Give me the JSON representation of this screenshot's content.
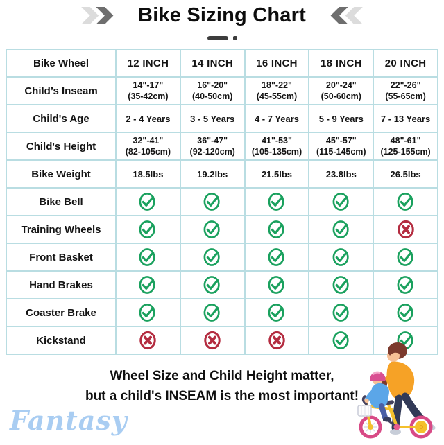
{
  "header": {
    "title": "Bike Sizing Chart"
  },
  "table": {
    "rows": [
      {
        "label": "Bike Wheel",
        "type": "header",
        "values": [
          "12 INCH",
          "14 INCH",
          "16 INCH",
          "18 INCH",
          "20 INCH"
        ]
      },
      {
        "label": "Child’s Inseam",
        "type": "text2",
        "values": [
          [
            "14\"-17\"",
            "(35-42cm)"
          ],
          [
            "16\"-20\"",
            "(40-50cm)"
          ],
          [
            "18\"-22\"",
            "(45-55cm)"
          ],
          [
            "20\"-24\"",
            "(50-60cm)"
          ],
          [
            "22\"-26\"",
            "(55-65cm)"
          ]
        ]
      },
      {
        "label": "Child's Age",
        "type": "text",
        "values": [
          "2 - 4 Years",
          "3 - 5 Years",
          "4 - 7 Years",
          "5 - 9 Years",
          "7 - 13 Years"
        ]
      },
      {
        "label": "Child's Height",
        "type": "text2",
        "values": [
          [
            "32\"-41\"",
            "(82-105cm)"
          ],
          [
            "36\"-47\"",
            "(92-120cm)"
          ],
          [
            "41\"-53\"",
            "(105-135cm)"
          ],
          [
            "45\"-57\"",
            "(115-145cm)"
          ],
          [
            "48\"-61\"",
            "(125-155cm)"
          ]
        ]
      },
      {
        "label": "Bike Weight",
        "type": "text",
        "values": [
          "18.5lbs",
          "19.2lbs",
          "21.5lbs",
          "23.8lbs",
          "26.5lbs"
        ]
      },
      {
        "label": "Bike Bell",
        "type": "icons",
        "values": [
          "check",
          "check",
          "check",
          "check",
          "check"
        ]
      },
      {
        "label": "Training Wheels",
        "type": "icons",
        "values": [
          "check",
          "check",
          "check",
          "check",
          "cross"
        ]
      },
      {
        "label": "Front Basket",
        "type": "icons",
        "values": [
          "check",
          "check",
          "check",
          "check",
          "check"
        ]
      },
      {
        "label": "Hand Brakes",
        "type": "icons",
        "values": [
          "check",
          "check",
          "check",
          "check",
          "check"
        ]
      },
      {
        "label": "Coaster Brake",
        "type": "icons",
        "values": [
          "check",
          "check",
          "check",
          "check",
          "check"
        ]
      },
      {
        "label": "Kickstand",
        "type": "icons",
        "values": [
          "cross",
          "cross",
          "cross",
          "check",
          "check"
        ]
      }
    ]
  },
  "footer": {
    "line1": "Wheel Size and Child Height matter,",
    "line2": "but a child's INSEAM is the most important!",
    "watermark": "Fantasy"
  },
  "colors": {
    "check_green": "#1aa15e",
    "cross_red": "#b42c40",
    "table_border": "#b9dde2",
    "watermark_blue": "#a9cdf2",
    "chevron_dark": "#6e6e6e",
    "chevron_light": "#dcdcdc"
  },
  "chart_data": {
    "type": "table",
    "title": "Bike Sizing Chart",
    "columns": [
      "Bike Wheel",
      "12 INCH",
      "14 INCH",
      "16 INCH",
      "18 INCH",
      "20 INCH"
    ],
    "rows": [
      [
        "Child’s Inseam",
        "14\"-17\" (35-42cm)",
        "16\"-20\" (40-50cm)",
        "18\"-22\" (45-55cm)",
        "20\"-24\" (50-60cm)",
        "22\"-26\" (55-65cm)"
      ],
      [
        "Child's Age",
        "2 - 4 Years",
        "3 - 5 Years",
        "4 - 7 Years",
        "5 - 9 Years",
        "7 - 13 Years"
      ],
      [
        "Child's Height",
        "32\"-41\" (82-105cm)",
        "36\"-47\" (92-120cm)",
        "41\"-53\" (105-135cm)",
        "45\"-57\" (115-145cm)",
        "48\"-61\" (125-155cm)"
      ],
      [
        "Bike Weight",
        "18.5lbs",
        "19.2lbs",
        "21.5lbs",
        "23.8lbs",
        "26.5lbs"
      ],
      [
        "Bike Bell",
        "yes",
        "yes",
        "yes",
        "yes",
        "yes"
      ],
      [
        "Training Wheels",
        "yes",
        "yes",
        "yes",
        "yes",
        "no"
      ],
      [
        "Front Basket",
        "yes",
        "yes",
        "yes",
        "yes",
        "yes"
      ],
      [
        "Hand Brakes",
        "yes",
        "yes",
        "yes",
        "yes",
        "yes"
      ],
      [
        "Coaster Brake",
        "yes",
        "yes",
        "yes",
        "yes",
        "yes"
      ],
      [
        "Kickstand",
        "no",
        "no",
        "no",
        "yes",
        "yes"
      ]
    ],
    "note": "Wheel Size and Child Height matter, but a child's INSEAM is the most important!"
  }
}
